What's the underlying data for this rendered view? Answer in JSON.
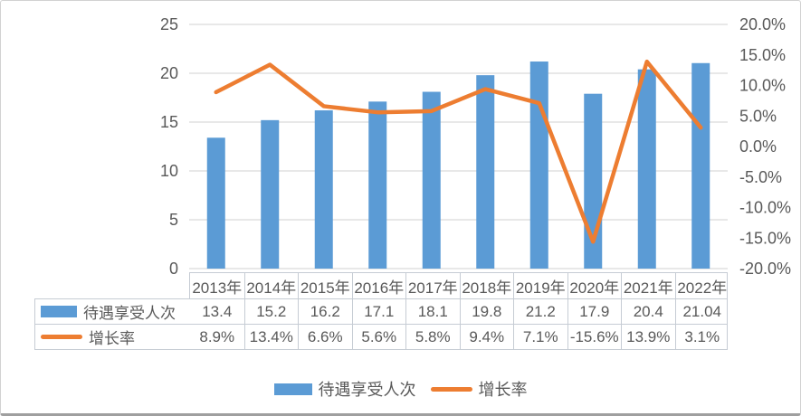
{
  "chart_data": {
    "type": "combo-bar-line",
    "title": "",
    "categories": [
      "2013年",
      "2014年",
      "2015年",
      "2016年",
      "2017年",
      "2018年",
      "2019年",
      "2020年",
      "2021年",
      "2022年"
    ],
    "series": [
      {
        "name": "待遇享受人次",
        "type": "bar",
        "axis": "left",
        "color": "#5b9bd5",
        "values": [
          13.4,
          15.2,
          16.2,
          17.1,
          18.1,
          19.8,
          21.2,
          17.9,
          20.4,
          21.04
        ],
        "labels": [
          "13.4",
          "15.2",
          "16.2",
          "17.1",
          "18.1",
          "19.8",
          "21.2",
          "17.9",
          "20.4",
          "21.04"
        ]
      },
      {
        "name": "增长率",
        "type": "line",
        "axis": "right",
        "color": "#ed7d31",
        "values": [
          8.9,
          13.4,
          6.6,
          5.6,
          5.8,
          9.4,
          7.1,
          -15.6,
          13.9,
          3.1
        ],
        "labels": [
          "8.9%",
          "13.4%",
          "6.6%",
          "5.6%",
          "5.8%",
          "9.4%",
          "7.1%",
          "-15.6%",
          "13.9%",
          "3.1%"
        ]
      }
    ],
    "left_axis": {
      "min": 0,
      "max": 25,
      "step": 5,
      "tick_labels": [
        "0",
        "5",
        "10",
        "15",
        "20",
        "25"
      ]
    },
    "right_axis": {
      "min": -20,
      "max": 20,
      "step": 5,
      "tick_labels": [
        "-20.0%",
        "-15.0%",
        "-10.0%",
        "-5.0%",
        "0.0%",
        "5.0%",
        "10.0%",
        "15.0%",
        "20.0%"
      ]
    },
    "gridlines": "horizontal",
    "grid_color": "#d9d9d9",
    "table_border_color": "#c6ccd4",
    "text_color": "#595959",
    "legend_position": "bottom",
    "data_table_shown": true
  }
}
